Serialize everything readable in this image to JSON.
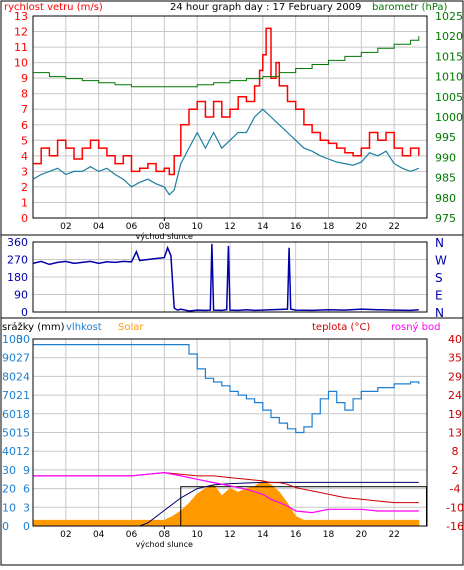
{
  "colors": {
    "background": "#ffffff",
    "frame": "#000000",
    "grid": "#c8c8c8",
    "wind_gust": "#ff0000",
    "wind_avg": "#1a7fa0",
    "pressure": "#007700",
    "direction": "#0000aa",
    "humidity": "#1e7fd0",
    "solar": "#ff9900",
    "temperature": "#cc0000",
    "dew_point": "#ff00ff",
    "rain": "#000066",
    "left_axis_red": "#ff0000",
    "left_axis_blue": "#1e7fd0",
    "right_axis_green": "#007700",
    "right_axis_red": "#cc0000",
    "direction_axis": "#0000aa"
  },
  "chart_data": [
    {
      "id": "wind",
      "type": "line",
      "title": "24 hour graph day : 17 February 2009",
      "left_label": "rychlost vetru (m/s)",
      "right_label": "barometr (hPa)",
      "xlabel": "východ slunce",
      "x_ticks": [
        "02",
        "04",
        "06",
        "08",
        "10",
        "12",
        "14",
        "16",
        "18",
        "20",
        "22"
      ],
      "xlim": [
        0,
        24
      ],
      "ylim_left": [
        0,
        13
      ],
      "left_ticks": [
        0,
        1,
        2,
        3,
        4,
        5,
        6,
        7,
        8,
        9,
        10,
        11,
        12,
        13
      ],
      "ylim_right": [
        975,
        1025
      ],
      "right_ticks": [
        975,
        980,
        985,
        990,
        995,
        1000,
        1005,
        1010,
        1015,
        1020,
        1025
      ],
      "grid": true,
      "series": [
        {
          "name": "gust",
          "color_key": "wind_gust",
          "x": [
            0.0,
            0.5,
            1.0,
            1.5,
            2.0,
            2.5,
            3.0,
            3.5,
            4.0,
            4.5,
            5.0,
            5.5,
            6.0,
            6.5,
            7.0,
            7.5,
            8.0,
            8.3,
            8.6,
            9.0,
            9.5,
            10.0,
            10.5,
            11.0,
            11.5,
            12.0,
            12.5,
            13.0,
            13.5,
            13.8,
            14.0,
            14.2,
            14.5,
            14.8,
            15.0,
            15.5,
            16.0,
            16.5,
            17.0,
            17.5,
            18.0,
            18.5,
            19.0,
            19.5,
            20.0,
            20.5,
            21.0,
            21.5,
            22.0,
            22.5,
            23.0,
            23.5
          ],
          "y": [
            3.5,
            4.5,
            4.0,
            5.0,
            4.5,
            3.8,
            4.5,
            5.0,
            4.5,
            4.0,
            3.5,
            4.0,
            3.0,
            3.2,
            3.5,
            3.0,
            3.2,
            2.8,
            4.0,
            6.0,
            7.0,
            7.5,
            6.5,
            7.5,
            6.5,
            7.0,
            7.8,
            7.5,
            8.5,
            9.5,
            10.5,
            12.2,
            9.0,
            10.0,
            8.5,
            7.5,
            7.0,
            6.0,
            5.5,
            5.0,
            4.8,
            4.5,
            4.2,
            4.0,
            4.5,
            5.5,
            5.0,
            5.5,
            4.5,
            4.0,
            4.5,
            4.0
          ]
        },
        {
          "name": "average",
          "color_key": "wind_avg",
          "x": [
            0.0,
            0.5,
            1.0,
            1.5,
            2.0,
            2.5,
            3.0,
            3.5,
            4.0,
            4.5,
            5.0,
            5.5,
            6.0,
            6.5,
            7.0,
            7.5,
            8.0,
            8.3,
            8.6,
            9.0,
            9.5,
            10.0,
            10.5,
            11.0,
            11.5,
            12.0,
            12.5,
            13.0,
            13.5,
            14.0,
            14.5,
            15.0,
            15.5,
            16.0,
            16.5,
            17.0,
            17.5,
            18.0,
            18.5,
            19.0,
            19.5,
            20.0,
            20.5,
            21.0,
            21.5,
            22.0,
            22.5,
            23.0,
            23.5
          ],
          "y": [
            2.5,
            2.8,
            3.0,
            3.2,
            2.8,
            3.0,
            3.0,
            3.3,
            3.0,
            3.2,
            2.8,
            2.5,
            2.0,
            2.3,
            2.5,
            2.2,
            2.0,
            1.5,
            1.8,
            3.5,
            4.5,
            5.5,
            4.5,
            5.5,
            4.5,
            5.0,
            5.5,
            5.5,
            6.5,
            7.0,
            6.5,
            6.0,
            5.5,
            5.0,
            4.5,
            4.3,
            4.0,
            3.8,
            3.6,
            3.5,
            3.4,
            3.6,
            4.2,
            4.0,
            4.3,
            3.5,
            3.2,
            3.0,
            3.2
          ]
        },
        {
          "name": "pressure",
          "color_key": "pressure",
          "axis": "right",
          "x": [
            0.0,
            1.0,
            2.0,
            3.0,
            4.0,
            5.0,
            6.0,
            7.0,
            8.0,
            9.0,
            10.0,
            11.0,
            12.0,
            13.0,
            14.0,
            15.0,
            16.0,
            17.0,
            18.0,
            19.0,
            20.0,
            21.0,
            22.0,
            23.0,
            23.5
          ],
          "y": [
            1011,
            1010,
            1009.5,
            1009,
            1008.5,
            1008,
            1007.5,
            1007.5,
            1007.5,
            1007.5,
            1008,
            1008.5,
            1009,
            1009.5,
            1010,
            1011,
            1012,
            1013,
            1014,
            1015,
            1016,
            1017,
            1018,
            1019,
            1020
          ]
        }
      ]
    },
    {
      "id": "direction",
      "type": "line",
      "left_ticks": [
        0,
        90,
        180,
        270,
        360
      ],
      "ylim_left": [
        0,
        360
      ],
      "right_labels": [
        "N",
        "W",
        "S",
        "E",
        "N"
      ],
      "xlim": [
        0,
        24
      ],
      "grid": true,
      "series": [
        {
          "name": "direction",
          "color_key": "direction",
          "x": [
            0.0,
            0.5,
            1.0,
            1.5,
            2.0,
            2.5,
            3.0,
            3.5,
            4.0,
            4.5,
            5.0,
            5.5,
            6.0,
            6.3,
            6.5,
            7.0,
            7.5,
            8.0,
            8.2,
            8.4,
            8.6,
            8.8,
            9.0,
            9.5,
            10.0,
            10.5,
            10.8,
            10.9,
            11.0,
            11.5,
            11.8,
            11.9,
            12.0,
            12.5,
            13.0,
            13.5,
            14.0,
            14.5,
            15.5,
            15.6,
            15.7,
            16.0,
            17.0,
            18.0,
            19.0,
            20.0,
            21.0,
            22.0,
            23.0,
            23.5
          ],
          "y": [
            250,
            260,
            245,
            255,
            260,
            250,
            255,
            260,
            250,
            258,
            255,
            260,
            258,
            310,
            265,
            270,
            275,
            280,
            330,
            290,
            20,
            10,
            15,
            5,
            10,
            8,
            10,
            350,
            10,
            8,
            12,
            340,
            10,
            8,
            12,
            8,
            10,
            12,
            15,
            330,
            15,
            10,
            8,
            12,
            10,
            15,
            12,
            10,
            8,
            12
          ]
        }
      ]
    },
    {
      "id": "weather",
      "type": "line",
      "left_label_rain": "srážky (mm)",
      "left_label_humidity": "vlhkost",
      "left_label_solar": "Solar",
      "right_label_temp": "teplota (°C)",
      "right_label_dew": "rosný bod",
      "xlabel": "východ slunce",
      "x_ticks": [
        "02",
        "04",
        "06",
        "08",
        "10",
        "12",
        "14",
        "16",
        "18",
        "20",
        "22"
      ],
      "xlim": [
        0,
        24
      ],
      "left_ticks_humidity": [
        0,
        10,
        20,
        30,
        40,
        50,
        60,
        70,
        80,
        90,
        100
      ],
      "left_ticks_rain": [
        0,
        3,
        6,
        9,
        12,
        15,
        18,
        21,
        24,
        27,
        30
      ],
      "ylim_humidity": [
        0,
        100
      ],
      "right_ticks_temp": [
        -16,
        -10,
        -4,
        2,
        8,
        13,
        19,
        24,
        29,
        35,
        40
      ],
      "ylim_temp": [
        -16,
        40
      ],
      "grid": true,
      "series": [
        {
          "name": "humidity",
          "color_key": "humidity",
          "x": [
            0.0,
            1.0,
            2.0,
            3.0,
            4.0,
            5.0,
            6.0,
            7.0,
            8.0,
            9.0,
            9.5,
            10.0,
            10.5,
            11.0,
            11.5,
            12.0,
            12.5,
            13.0,
            13.5,
            14.0,
            14.5,
            15.0,
            15.5,
            16.0,
            16.5,
            17.0,
            17.5,
            18.0,
            18.5,
            19.0,
            19.5,
            20.0,
            20.5,
            21.0,
            21.5,
            22.0,
            22.5,
            23.0,
            23.5
          ],
          "y": [
            97,
            97,
            97,
            97,
            97,
            97,
            97,
            97,
            97,
            97,
            92,
            84,
            79,
            77,
            75,
            72,
            70,
            68,
            66,
            62,
            58,
            55,
            52,
            50,
            53,
            60,
            68,
            72,
            66,
            62,
            68,
            72,
            72,
            74,
            74,
            76,
            76,
            77,
            76
          ]
        },
        {
          "name": "temperature",
          "color_key": "temperature",
          "axis": "right",
          "x": [
            0.0,
            2.0,
            4.0,
            6.0,
            7.0,
            8.0,
            9.0,
            10.0,
            11.0,
            12.0,
            13.0,
            14.0,
            14.5,
            15.0,
            15.5,
            16.0,
            17.0,
            18.0,
            19.0,
            20.0,
            21.0,
            22.0,
            23.0,
            23.5
          ],
          "y": [
            -1,
            -1,
            -1,
            -1,
            -0.5,
            0,
            -0.5,
            -1,
            -1,
            -1.5,
            -2,
            -2.5,
            -3,
            -3,
            -3.5,
            -4.5,
            -5.5,
            -6.5,
            -7.5,
            -8,
            -8.5,
            -9,
            -9,
            -9
          ]
        },
        {
          "name": "dew point",
          "color_key": "dew_point",
          "axis": "right",
          "x": [
            0.0,
            2.0,
            4.0,
            6.0,
            7.0,
            8.0,
            9.0,
            10.0,
            11.0,
            12.0,
            13.0,
            14.0,
            14.5,
            15.0,
            15.5,
            16.0,
            17.0,
            18.0,
            19.0,
            20.0,
            21.0,
            22.0,
            23.0,
            23.5
          ],
          "y": [
            -1,
            -1,
            -1,
            -1,
            -0.5,
            0,
            -1,
            -2,
            -3,
            -4,
            -5,
            -6.5,
            -8,
            -9,
            -10,
            -11.5,
            -12,
            -11,
            -11,
            -11,
            -11.5,
            -11.5,
            -11.5,
            -11.5
          ]
        },
        {
          "name": "solar",
          "color_key": "solar",
          "x": [
            0.0,
            6.9,
            7.0,
            8.0,
            8.5,
            9.0,
            9.5,
            10.0,
            10.5,
            11.0,
            11.5,
            12.0,
            12.5,
            13.0,
            13.5,
            14.0,
            14.5,
            15.0,
            15.5,
            16.0,
            16.5,
            17.0,
            23.5
          ],
          "y": [
            3,
            3,
            3,
            3,
            5,
            8,
            12,
            17,
            20,
            22,
            16,
            20,
            18,
            20,
            21,
            24,
            22,
            18,
            12,
            5,
            3,
            3,
            3
          ]
        },
        {
          "name": "rain",
          "color_key": "rain",
          "x": [
            0.0,
            6.5,
            7.0,
            8.0,
            9.0,
            10.0,
            11.0,
            12.0,
            13.0,
            14.0,
            15.0,
            23.5
          ],
          "y": [
            0,
            0,
            0.5,
            2.5,
            4.5,
            6,
            6.6,
            6.8,
            6.9,
            7,
            7,
            7
          ]
        }
      ]
    }
  ]
}
